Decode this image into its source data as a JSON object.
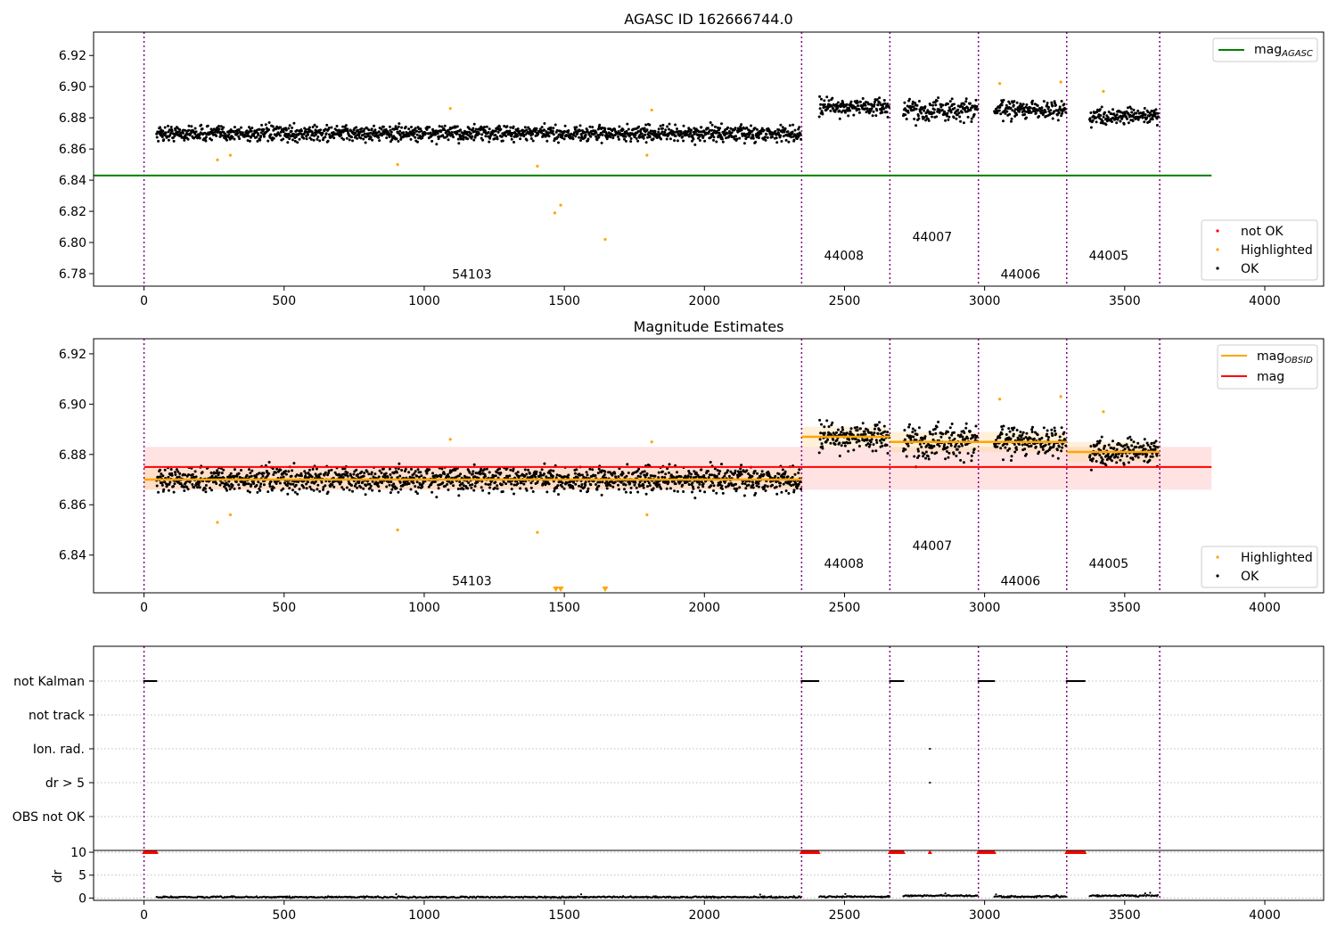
{
  "chart_data": [
    {
      "type": "scatter",
      "title": "AGASC ID 162666744.0",
      "xlim": [
        -180,
        4210
      ],
      "ylim": [
        6.772,
        6.935
      ],
      "xticks": [
        0,
        500,
        1000,
        1500,
        2000,
        2500,
        3000,
        3500,
        4000
      ],
      "yticks": [
        6.78,
        6.8,
        6.82,
        6.84,
        6.86,
        6.88,
        6.9,
        6.92
      ],
      "ytick_labels": [
        "6.78",
        "6.80",
        "6.82",
        "6.84",
        "6.86",
        "6.88",
        "6.90",
        "6.92"
      ],
      "obsid_boundaries": [
        0,
        2347,
        2662,
        2978,
        3293,
        3625
      ],
      "obsid_labels": [
        {
          "label": "54103",
          "x": 1170,
          "y": 6.777
        },
        {
          "label": "44008",
          "x": 2498,
          "y": 6.789
        },
        {
          "label": "44007",
          "x": 2813,
          "y": 6.801
        },
        {
          "label": "44006",
          "x": 3128,
          "y": 6.777
        },
        {
          "label": "44005",
          "x": 3443,
          "y": 6.789
        }
      ],
      "mag_agasc": {
        "value": 6.843,
        "x_range": [
          -180,
          3810
        ]
      },
      "segments": [
        {
          "start": 45,
          "end": 2345,
          "mean": 6.87,
          "spread": 0.0035
        },
        {
          "start": 2410,
          "end": 2660,
          "mean": 6.887,
          "spread": 0.004
        },
        {
          "start": 2710,
          "end": 2975,
          "mean": 6.885,
          "spread": 0.005
        },
        {
          "start": 3035,
          "end": 3290,
          "mean": 6.885,
          "spread": 0.004
        },
        {
          "start": 3375,
          "end": 3620,
          "mean": 6.881,
          "spread": 0.0035
        }
      ],
      "highlighted_points": [
        [
          262,
          6.853
        ],
        [
          308,
          6.856
        ],
        [
          905,
          6.85
        ],
        [
          1093,
          6.886
        ],
        [
          1404,
          6.849
        ],
        [
          1466,
          6.819
        ],
        [
          1487,
          6.824
        ],
        [
          1646,
          6.802
        ],
        [
          1795,
          6.856
        ],
        [
          1812,
          6.885
        ],
        [
          3054,
          6.902
        ],
        [
          3272,
          6.903
        ],
        [
          3424,
          6.897
        ]
      ],
      "legend_top": [
        {
          "label": "mag",
          "sub": "AGASC",
          "color": "#008000"
        }
      ],
      "legend_bottom": [
        {
          "label": "not OK",
          "color": "#ff0000"
        },
        {
          "label": "Highlighted",
          "color": "#ffa500"
        },
        {
          "label": "OK",
          "color": "#000000"
        }
      ]
    },
    {
      "type": "scatter",
      "title": "Magnitude Estimates",
      "xlim": [
        -180,
        4210
      ],
      "ylim": [
        6.825,
        6.926
      ],
      "xticks": [
        0,
        500,
        1000,
        1500,
        2000,
        2500,
        3000,
        3500,
        4000
      ],
      "yticks": [
        6.84,
        6.86,
        6.88,
        6.9,
        6.92
      ],
      "ytick_labels": [
        "6.84",
        "6.86",
        "6.88",
        "6.90",
        "6.92"
      ],
      "obsid_boundaries": [
        0,
        2347,
        2662,
        2978,
        3293,
        3625
      ],
      "obsid_labels": [
        {
          "label": "54103",
          "x": 1170,
          "y": 6.828
        },
        {
          "label": "44008",
          "x": 2498,
          "y": 6.835
        },
        {
          "label": "44007",
          "x": 2813,
          "y": 6.842
        },
        {
          "label": "44006",
          "x": 3128,
          "y": 6.828
        },
        {
          "label": "44005",
          "x": 3443,
          "y": 6.835
        }
      ],
      "mag": {
        "value": 6.875,
        "band": [
          6.866,
          6.883
        ],
        "x_range": [
          0,
          3810
        ]
      },
      "mag_obsid": [
        {
          "x0": 0,
          "x1": 2347,
          "value": 6.87
        },
        {
          "x0": 2347,
          "x1": 2662,
          "value": 6.887
        },
        {
          "x0": 2662,
          "x1": 2978,
          "value": 6.885
        },
        {
          "x0": 2978,
          "x1": 3293,
          "value": 6.885
        },
        {
          "x0": 3293,
          "x1": 3625,
          "value": 6.881
        }
      ],
      "out_of_range_markers": [
        1470,
        1487,
        1646
      ],
      "legend_top": [
        {
          "label": "mag",
          "sub": "OBSID",
          "color": "#ffa500"
        },
        {
          "label": "mag",
          "sub": "",
          "color": "#ff0000"
        }
      ],
      "legend_bottom": [
        {
          "label": "Highlighted",
          "color": "#ffa500"
        },
        {
          "label": "OK",
          "color": "#000000"
        }
      ]
    },
    {
      "type": "scatter",
      "title": "",
      "xlim": [
        -180,
        4210
      ],
      "xticks": [
        0,
        500,
        1000,
        1500,
        2000,
        2500,
        3000,
        3500,
        4000
      ],
      "flag_rows": [
        "not Kalman",
        "not track",
        "Ion. rad.",
        "dr > 5",
        "OBS not OK"
      ],
      "flags": [
        {
          "row": "not Kalman",
          "ranges": [
            [
              0,
              45
            ],
            [
              2347,
              2410
            ],
            [
              2662,
              2710
            ],
            [
              2978,
              3035
            ],
            [
              3293,
              3360
            ]
          ]
        },
        {
          "row": "Ion. rad.",
          "points": [
            2805
          ]
        },
        {
          "row": "dr > 5",
          "points": [
            2805
          ]
        }
      ],
      "dr_ylabel": "dr",
      "dr_yticks": [
        0,
        5,
        10
      ],
      "dr_ylim": [
        -0.5,
        10.4
      ],
      "dr_clipped_ranges": [
        [
          0,
          45
        ],
        [
          2347,
          2410
        ],
        [
          2662,
          2710
        ],
        [
          2978,
          3035
        ],
        [
          3293,
          3360
        ]
      ],
      "dr_clipped_points": [
        2805
      ],
      "dr_segments": [
        {
          "start": 45,
          "end": 2345,
          "mean": 0.2
        },
        {
          "start": 2410,
          "end": 2660,
          "mean": 0.3
        },
        {
          "start": 2710,
          "end": 2975,
          "mean": 0.5
        },
        {
          "start": 3035,
          "end": 3290,
          "mean": 0.3
        },
        {
          "start": 3375,
          "end": 3620,
          "mean": 0.5
        }
      ]
    }
  ],
  "colors": {
    "ok": "#000000",
    "highlighted": "#ffa500",
    "not_ok": "#ff0000",
    "boundary": "#800080",
    "mag_agasc": "#008000",
    "mag": "#ff0000",
    "mag_obsid": "#ffa500"
  }
}
